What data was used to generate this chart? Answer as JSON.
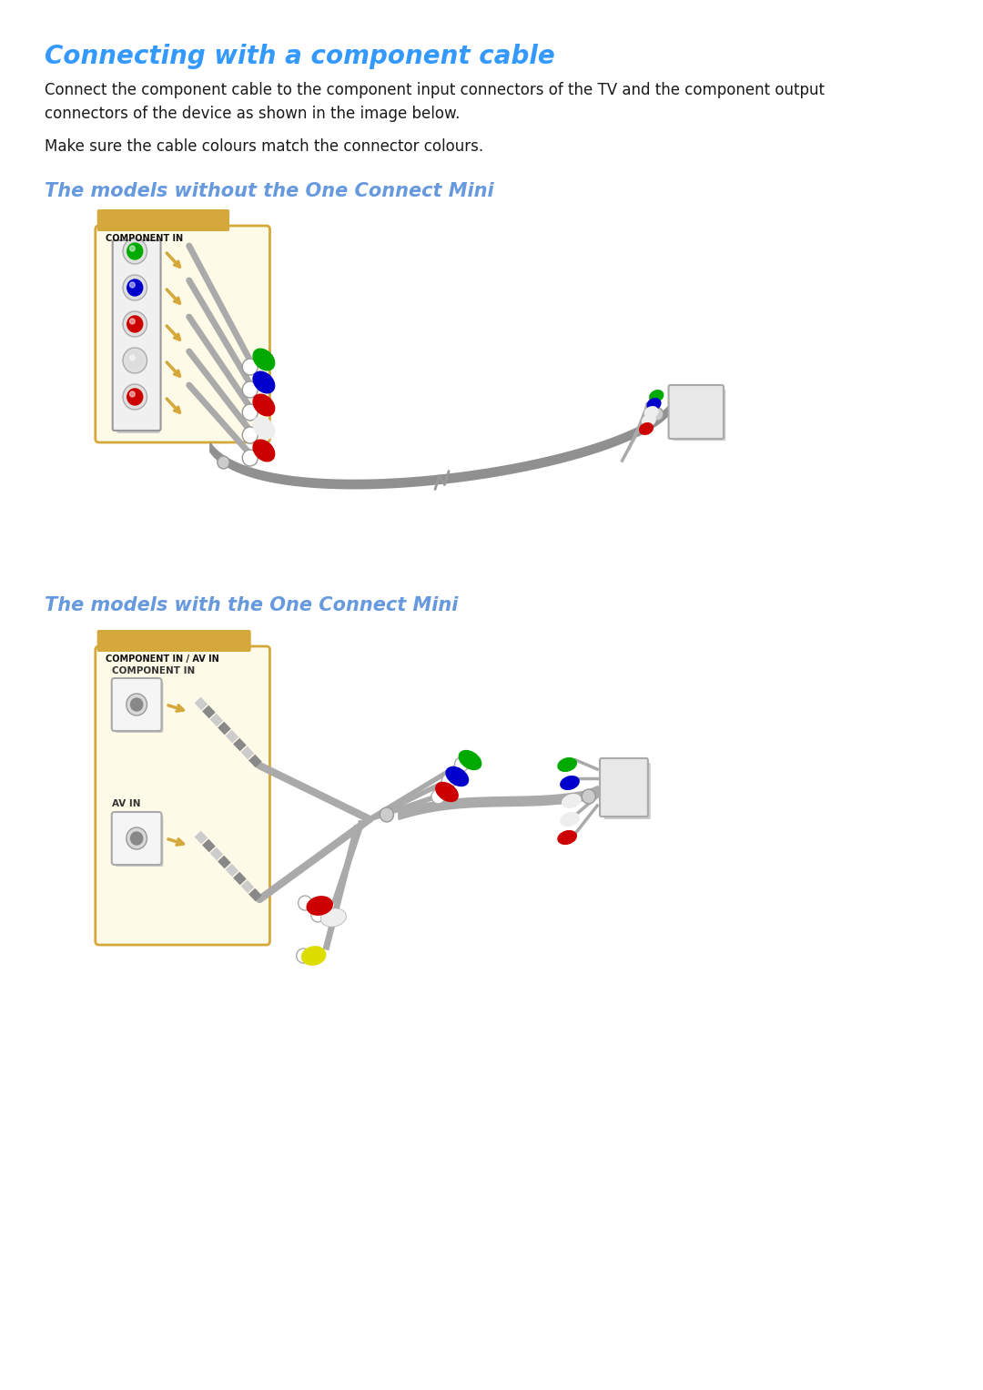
{
  "title": "Connecting with a component cable",
  "title_color": "#3399FF",
  "title_fontsize": 20,
  "body_text1": "Connect the component cable to the component input connectors of the TV and the component output\nconnectors of the device as shown in the image below.",
  "body_text2": "Make sure the cable colours match the connector colours.",
  "body_fontsize": 12,
  "body_color": "#1a1a1a",
  "section1_title": "The models without the One Connect Mini",
  "section2_title": "The models with the One Connect Mini",
  "section_title_color": "#6699DD",
  "section_title_fontsize": 15,
  "bg_color": "#ffffff",
  "box_color": "#D4A83A",
  "cable_color": "#999999",
  "port_colors_1": [
    "#00aa00",
    "#0000cc",
    "#cc0000",
    "#dddddd",
    "#cc0000"
  ],
  "plug_colors_1": [
    "#00aa00",
    "#0000cc",
    "#cc0000",
    "#dddddd",
    "#cc0000"
  ],
  "right_colors_1": [
    "#00aa00",
    "#0000cc",
    "#dddddd",
    "#cc0000"
  ],
  "plug_colors_2_top": [
    "#00aa00",
    "#0000cc",
    "#cc0000"
  ],
  "plug_colors_2_right": [
    "#00aa00",
    "#0000cc",
    "#dddddd",
    "#cc0000"
  ],
  "av_plug_colors": [
    "#cc0000",
    "#ffee00"
  ]
}
